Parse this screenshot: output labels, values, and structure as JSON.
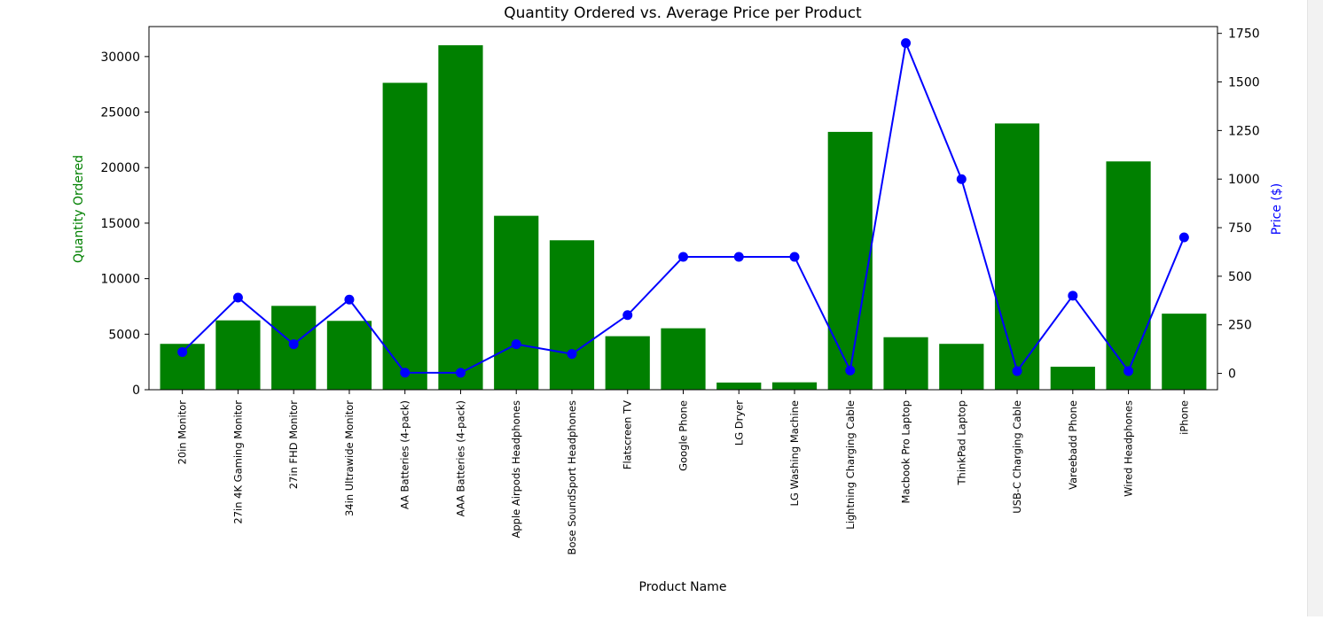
{
  "chart_data": {
    "type": "bar",
    "title": "Quantity Ordered vs. Average Price per Product",
    "xlabel": "Product Name",
    "ylabel": "Quantity Ordered",
    "y2label": "Price ($)",
    "categories": [
      "20in Monitor",
      "27in 4K Gaming Monitor",
      "27in FHD Monitor",
      "34in Ultrawide Monitor",
      "AA Batteries (4-pack)",
      "AAA Batteries (4-pack)",
      "Apple Airpods Headphones",
      "Bose SoundSport Headphones",
      "Flatscreen TV",
      "Google Phone",
      "LG Dryer",
      "LG Washing Machine",
      "Lightning Charging Cable",
      "Macbook Pro Laptop",
      "ThinkPad Laptop",
      "USB-C Charging Cable",
      "Vareebadd Phone",
      "Wired Headphones",
      "iPhone"
    ],
    "series": [
      {
        "name": "Quantity Ordered",
        "type": "bar",
        "axis": "left",
        "color": "#008000",
        "values": [
          4129,
          6244,
          7550,
          6199,
          27635,
          31017,
          15661,
          13457,
          4819,
          5532,
          646,
          666,
          23217,
          4728,
          4130,
          23975,
          2068,
          20557,
          6849
        ]
      },
      {
        "name": "Price ($)",
        "type": "line",
        "axis": "right",
        "color": "#0000ff",
        "values": [
          109.99,
          389.99,
          149.99,
          379.99,
          3.84,
          2.99,
          150.0,
          99.99,
          300.0,
          600.0,
          600.0,
          600.0,
          14.95,
          1700.0,
          999.99,
          11.95,
          400.0,
          11.99,
          700.0
        ]
      }
    ],
    "ylim": [
      0,
      32700
    ],
    "y2lim": [
      -84,
      1785
    ],
    "yticks": [
      0,
      5000,
      10000,
      15000,
      20000,
      25000,
      30000
    ],
    "y2ticks": [
      0,
      250,
      500,
      750,
      1000,
      1250,
      1500,
      1750
    ],
    "grid": false,
    "colors": {
      "bar": "#008000",
      "line": "#0000ff",
      "ylabel": "#008000",
      "y2label": "#0000ff"
    }
  }
}
